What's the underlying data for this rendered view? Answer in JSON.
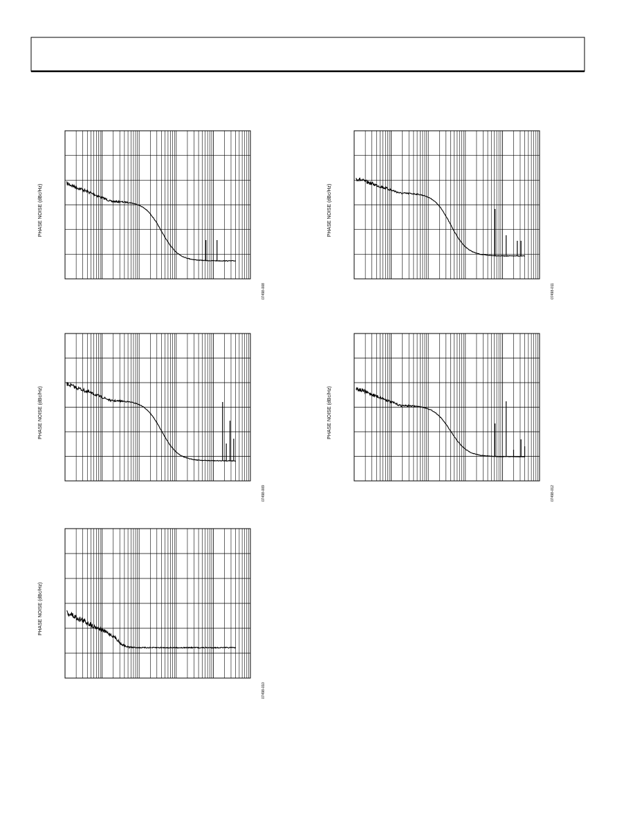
{
  "figures": [
    {
      "ylabel": "PHASE NOISE (dBc/Hz)",
      "code": "07498-008"
    },
    {
      "ylabel": "PHASE NOISE (dBc/Hz)",
      "code": "07498-011"
    },
    {
      "ylabel": "PHASE NOISE (dBc/Hz)",
      "code": "07498-009"
    },
    {
      "ylabel": "PHASE NOISE (dBc/Hz)",
      "code": "07498-012"
    },
    {
      "ylabel": "PHASE NOISE (dBc/Hz)",
      "code": "07498-010"
    }
  ]
}
